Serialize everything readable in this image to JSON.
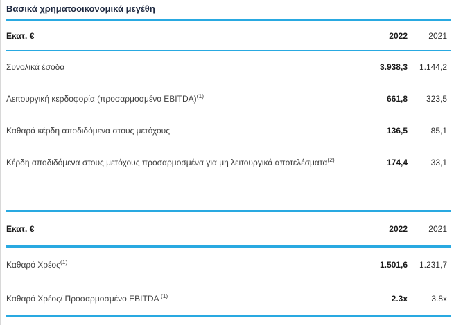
{
  "page": {
    "title": "Βασικά χρηματοοικονομικά μεγέθη"
  },
  "colors": {
    "accent_blue": "#29a9e1",
    "title_text": "#1e2940",
    "body_text": "#3f3f3f",
    "bold_value_text": "#1a1a1a"
  },
  "tables": [
    {
      "unit_label": "Εκατ. €",
      "columns": [
        "2022",
        "2021"
      ],
      "rows": [
        {
          "label": "Συνολικά έσοδα",
          "sup": "",
          "v2022": "3.938,3",
          "v2021": "1.144,2"
        },
        {
          "label": "Λειτουργική κερδοφορία (προσαρμοσμένο EBITDA)",
          "sup": "(1)",
          "v2022": "661,8",
          "v2021": "323,5"
        },
        {
          "label": "Καθαρά κέρδη αποδιδόμενα στους μετόχους",
          "sup": "",
          "v2022": "136,5",
          "v2021": "85,1"
        },
        {
          "label": "Κέρδη αποδιδόμενα στους μετόχους προσαρμοσμένα για μη λειτουργικά αποτελέσματα",
          "sup": "(2)",
          "v2022": "174,4",
          "v2021": "33,1"
        }
      ]
    },
    {
      "unit_label": "Εκατ. €",
      "columns": [
        "2022",
        "2021"
      ],
      "rows": [
        {
          "label": "Καθαρό Χρέος",
          "sup": "(1)",
          "v2022": "1.501,6",
          "v2021": "1.231,7"
        },
        {
          "label": "Καθαρό Χρέος/ Προσαρμοσμένο EBITDA",
          "sup": " (1)",
          "v2022": "2.3x",
          "v2021": "3.8x"
        }
      ]
    }
  ]
}
